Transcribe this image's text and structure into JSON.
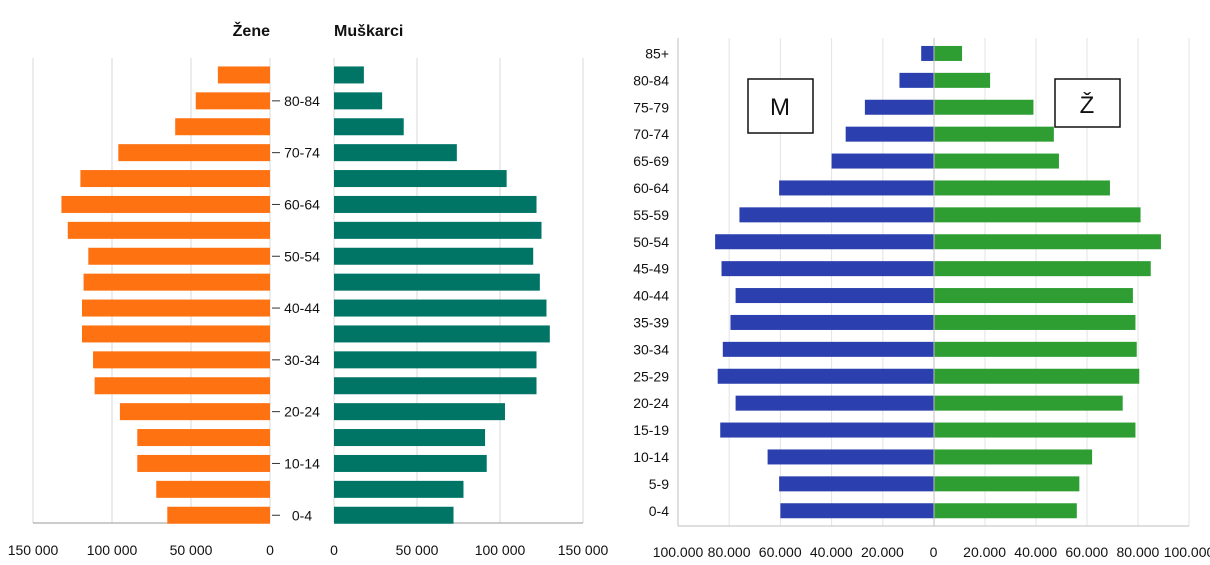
{
  "chart_data": [
    {
      "type": "bar",
      "orientation": "horizontal-butterfly",
      "left_header": "Žene",
      "right_header": "Muškarci",
      "left_color": "#ff7212",
      "right_color": "#007566",
      "age_labels": [
        "80-84",
        "70-74",
        "60-64",
        "50-54",
        "40-44",
        "30-34",
        "20-24",
        "10-14",
        "0-4"
      ],
      "age_label_rows": [
        2,
        4,
        6,
        8,
        10,
        12,
        14,
        16,
        18
      ],
      "row_count": 18,
      "xlim": [
        0,
        150000
      ],
      "xticks": [
        "150 000",
        "100 000",
        "50 000",
        "0",
        "0",
        "50 000",
        "100 000",
        "150 000"
      ],
      "grid": true,
      "series": [
        {
          "name": "Žene",
          "values": [
            33000,
            47000,
            60000,
            96000,
            120000,
            132000,
            128000,
            115000,
            118000,
            119000,
            119000,
            112000,
            111000,
            95000,
            84000,
            84000,
            72000,
            65000
          ]
        },
        {
          "name": "Muškarci",
          "values": [
            18000,
            29000,
            42000,
            74000,
            104000,
            122000,
            125000,
            120000,
            124000,
            128000,
            130000,
            122000,
            122000,
            103000,
            91000,
            92000,
            78000,
            72000
          ]
        }
      ]
    },
    {
      "type": "bar",
      "orientation": "horizontal-butterfly",
      "left_box_label": "M",
      "right_box_label": "Ž",
      "left_color": "#2b3fae",
      "right_color": "#2e9e33",
      "categories": [
        "85+",
        "80-84",
        "75-79",
        "70-74",
        "65-69",
        "60-64",
        "55-59",
        "50-54",
        "45-49",
        "40-44",
        "35-39",
        "30-34",
        "25-29",
        "20-24",
        "15-19",
        "10-14",
        "5-9",
        "0-4"
      ],
      "xlim": [
        0,
        100000
      ],
      "xticks": [
        "100.000",
        "80.000",
        "60.000",
        "40.000",
        "20.000",
        "0",
        "20.000",
        "40.000",
        "60.000",
        "80.000",
        "100.000"
      ],
      "grid": true,
      "series": [
        {
          "name": "M",
          "values": [
            5000,
            13500,
            27000,
            34500,
            40000,
            60500,
            76000,
            85500,
            83000,
            77500,
            79500,
            82500,
            84500,
            77500,
            83500,
            65000,
            60500,
            60000
          ]
        },
        {
          "name": "Ž",
          "values": [
            11000,
            22000,
            39000,
            47000,
            49000,
            69000,
            81000,
            89000,
            85000,
            78000,
            79000,
            79500,
            80500,
            74000,
            79000,
            62000,
            57000,
            56000
          ]
        }
      ]
    }
  ]
}
